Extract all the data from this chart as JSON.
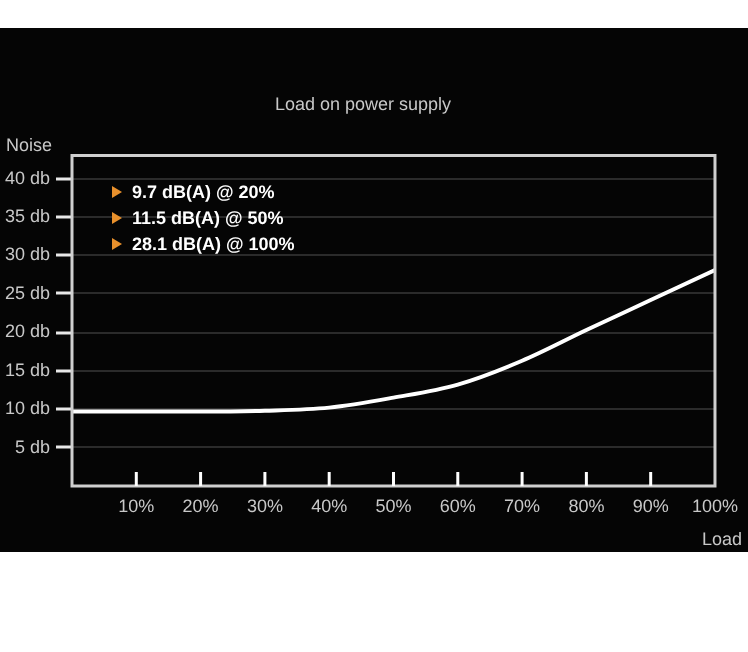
{
  "chart_data": {
    "type": "line",
    "title": "Load on power supply",
    "xlabel": "Load",
    "ylabel": "Noise",
    "x": [
      0,
      10,
      20,
      30,
      40,
      50,
      60,
      70,
      80,
      90,
      100
    ],
    "series": [
      {
        "color": "#ffffff",
        "values": [
          9.7,
          9.7,
          9.7,
          9.8,
          10.2,
          11.5,
          13.2,
          16.3,
          20.3,
          24.2,
          28.1
        ]
      }
    ],
    "xlim": [
      0,
      100
    ],
    "ylim": [
      0,
      43
    ],
    "xticks": [
      {
        "value": 10,
        "label": "10%"
      },
      {
        "value": 20,
        "label": "20%"
      },
      {
        "value": 30,
        "label": "30%"
      },
      {
        "value": 40,
        "label": "40%"
      },
      {
        "value": 50,
        "label": "50%"
      },
      {
        "value": 60,
        "label": "60%"
      },
      {
        "value": 70,
        "label": "70%"
      },
      {
        "value": 80,
        "label": "80%"
      },
      {
        "value": 90,
        "label": "90%"
      },
      {
        "value": 100,
        "label": "100%"
      }
    ],
    "yticks": [
      {
        "value": 5,
        "label": "5 db"
      },
      {
        "value": 10,
        "label": "10 db"
      },
      {
        "value": 15,
        "label": "15 db"
      },
      {
        "value": 20,
        "label": "20 db"
      },
      {
        "value": 25,
        "label": "25 db"
      },
      {
        "value": 30,
        "label": "30 db"
      },
      {
        "value": 35,
        "label": "35 db"
      },
      {
        "value": 40,
        "label": "40 db"
      }
    ],
    "grid": "y",
    "legend": false,
    "marker": "none",
    "line_style": "solid",
    "annotations": [
      "9.7 dB(A) @ 20%",
      "11.5 dB(A) @ 50%",
      "28.1 dB(A) @ 100%"
    ]
  }
}
